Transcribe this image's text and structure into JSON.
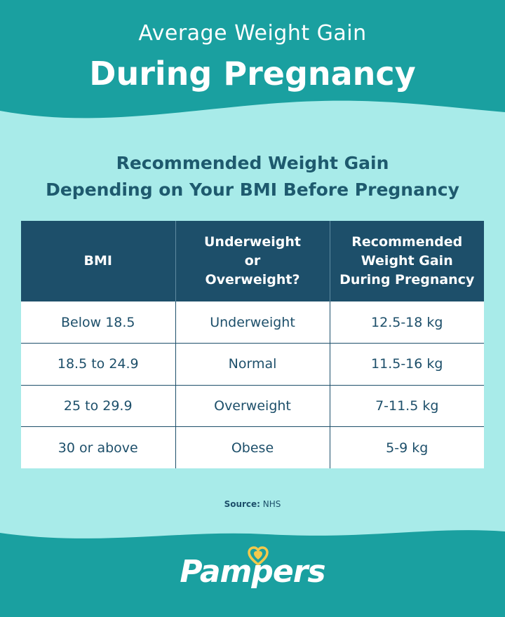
{
  "header": {
    "title_line1": "Average Weight Gain",
    "title_line2": "During Pregnancy",
    "band_color": "#1aa0a0"
  },
  "subtitle": {
    "line1": "Recommended Weight Gain",
    "line2": "Depending on Your BMI Before Pregnancy"
  },
  "table": {
    "headers": [
      [
        "BMI"
      ],
      [
        "Underweight",
        "or",
        "Overweight?"
      ],
      [
        "Recommended",
        "Weight Gain",
        "During Pregnancy"
      ]
    ],
    "rows": [
      [
        "Below 18.5",
        "Underweight",
        "12.5-18 kg"
      ],
      [
        "18.5 to 24.9",
        "Normal",
        "11.5-16 kg"
      ],
      [
        "25 to 29.9",
        "Overweight",
        "7-11.5 kg"
      ],
      [
        "30 or above",
        "Obese",
        "5-9 kg"
      ]
    ],
    "header_color": "#1d4f6a"
  },
  "source": {
    "label": "Source:",
    "value": "NHS"
  },
  "footer": {
    "logo_text": "Pampers",
    "logo_icon": "heart-icon",
    "heart_color": "#f2c94c"
  }
}
